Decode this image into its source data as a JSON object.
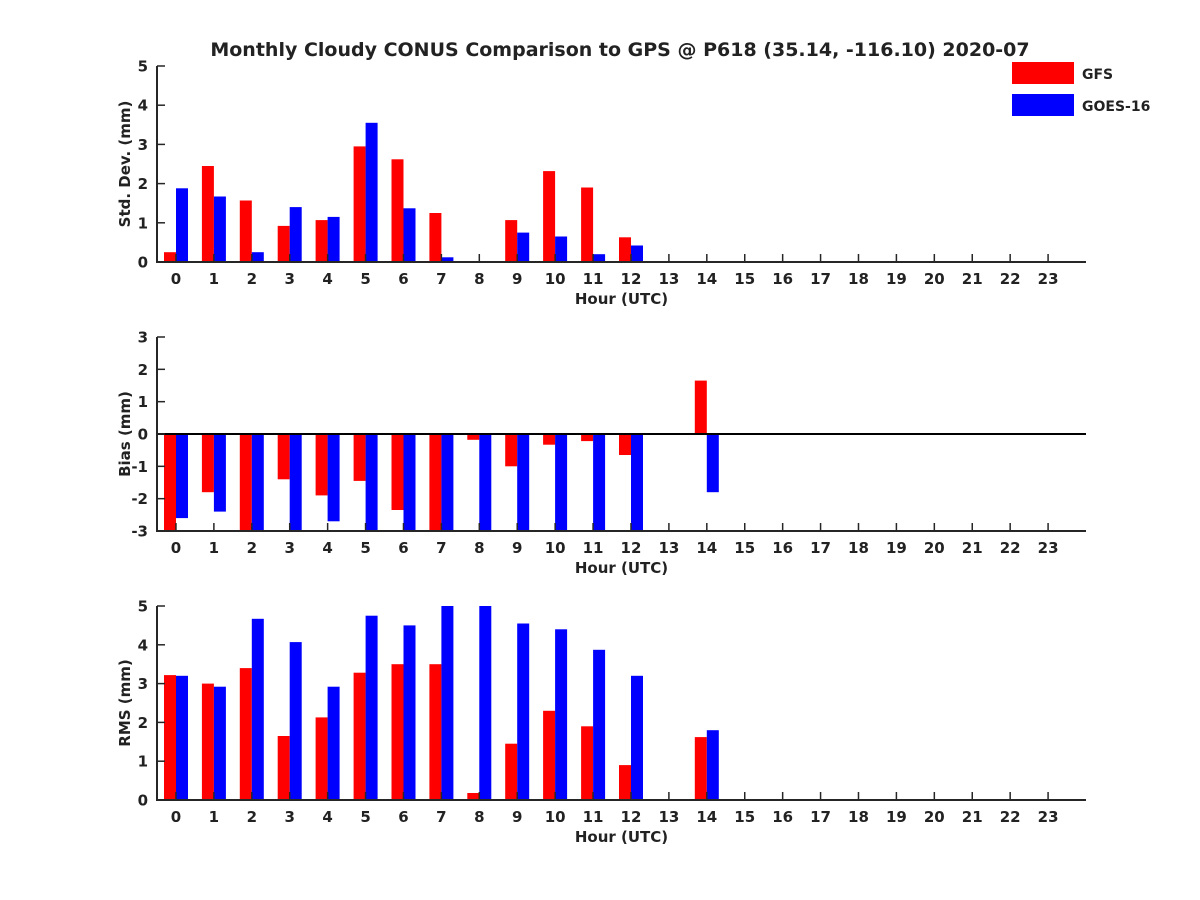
{
  "figure_title": "Monthly Cloudy CONUS Comparison to GPS @ P618 (35.14, -116.10) 2020-07",
  "colors": {
    "GFS": "#ff0000",
    "GOES-16": "#0000ff"
  },
  "legend": [
    "GFS",
    "GOES-16"
  ],
  "chart_data": [
    {
      "type": "bar",
      "title": "Monthly Cloudy CONUS Comparison to GPS @ P618 (35.14, -116.10) 2020-07",
      "xlabel": "Hour (UTC)",
      "ylabel": "Std. Dev. (mm)",
      "ylim": [
        0,
        5
      ],
      "yticks": [
        0,
        1,
        2,
        3,
        4,
        5
      ],
      "categories": [
        "0",
        "1",
        "2",
        "3",
        "4",
        "5",
        "6",
        "7",
        "8",
        "9",
        "10",
        "11",
        "12",
        "13",
        "14",
        "15",
        "16",
        "17",
        "18",
        "19",
        "20",
        "21",
        "22",
        "23"
      ],
      "series": [
        {
          "name": "GFS",
          "values": [
            0.25,
            2.45,
            1.57,
            0.92,
            1.07,
            2.95,
            2.62,
            1.25,
            null,
            1.07,
            2.32,
            1.9,
            0.63,
            null,
            null,
            null,
            null,
            null,
            null,
            null,
            null,
            null,
            null,
            null
          ]
        },
        {
          "name": "GOES-16",
          "values": [
            1.88,
            1.67,
            0.25,
            1.4,
            1.15,
            3.55,
            1.37,
            0.12,
            null,
            0.75,
            0.65,
            0.2,
            0.42,
            null,
            null,
            null,
            null,
            null,
            null,
            null,
            null,
            null,
            null,
            null
          ]
        }
      ]
    },
    {
      "type": "bar",
      "title": "",
      "xlabel": "Hour (UTC)",
      "ylabel": "Bias (mm)",
      "ylim": [
        -3,
        3
      ],
      "yticks": [
        -3,
        -2,
        -1,
        0,
        1,
        2,
        3
      ],
      "zero_line": true,
      "categories": [
        "0",
        "1",
        "2",
        "3",
        "4",
        "5",
        "6",
        "7",
        "8",
        "9",
        "10",
        "11",
        "12",
        "13",
        "14",
        "15",
        "16",
        "17",
        "18",
        "19",
        "20",
        "21",
        "22",
        "23"
      ],
      "series": [
        {
          "name": "GFS",
          "values": [
            -3.0,
            -1.8,
            -3.0,
            -1.4,
            -1.9,
            -1.45,
            -2.35,
            -3.0,
            -0.18,
            -1.0,
            -0.33,
            -0.22,
            -0.65,
            null,
            1.65,
            null,
            null,
            null,
            null,
            null,
            null,
            null,
            null,
            null
          ]
        },
        {
          "name": "GOES-16",
          "values": [
            -2.6,
            -2.4,
            -3.0,
            -3.0,
            -2.7,
            -3.0,
            -3.0,
            -3.0,
            -3.0,
            -3.0,
            -3.0,
            -3.0,
            -3.0,
            null,
            -1.8,
            null,
            null,
            null,
            null,
            null,
            null,
            null,
            null,
            null
          ]
        }
      ]
    },
    {
      "type": "bar",
      "title": "",
      "xlabel": "Hour (UTC)",
      "ylabel": "RMS (mm)",
      "ylim": [
        0,
        5
      ],
      "yticks": [
        0,
        1,
        2,
        3,
        4,
        5
      ],
      "categories": [
        "0",
        "1",
        "2",
        "3",
        "4",
        "5",
        "6",
        "7",
        "8",
        "9",
        "10",
        "11",
        "12",
        "13",
        "14",
        "15",
        "16",
        "17",
        "18",
        "19",
        "20",
        "21",
        "22",
        "23"
      ],
      "series": [
        {
          "name": "GFS",
          "values": [
            3.22,
            3.0,
            3.4,
            1.65,
            2.13,
            3.28,
            3.5,
            3.5,
            0.18,
            1.45,
            2.3,
            1.9,
            0.9,
            null,
            1.62,
            null,
            null,
            null,
            null,
            null,
            null,
            null,
            null,
            null
          ]
        },
        {
          "name": "GOES-16",
          "values": [
            3.2,
            2.92,
            4.67,
            4.07,
            2.92,
            4.75,
            4.5,
            5.0,
            5.0,
            4.55,
            4.4,
            3.87,
            3.2,
            null,
            1.8,
            null,
            null,
            null,
            null,
            null,
            null,
            null,
            null,
            null
          ]
        }
      ]
    }
  ]
}
